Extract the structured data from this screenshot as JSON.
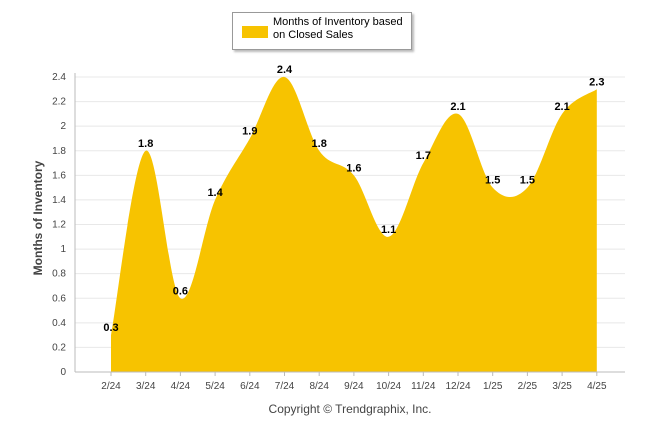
{
  "chart_data": {
    "type": "area",
    "categories": [
      "2/24",
      "3/24",
      "4/24",
      "5/24",
      "6/24",
      "7/24",
      "8/24",
      "9/24",
      "10/24",
      "11/24",
      "12/24",
      "1/25",
      "2/25",
      "3/25",
      "4/25"
    ],
    "series": [
      {
        "name": "Months of Inventory based on Closed Sales",
        "values": [
          0.3,
          1.8,
          0.6,
          1.4,
          1.9,
          2.4,
          1.8,
          1.6,
          1.1,
          1.7,
          2.1,
          1.5,
          1.5,
          2.1,
          2.3
        ],
        "labels": [
          "0.3",
          "1.8",
          "0.6",
          "1.4",
          "1.9",
          "2.4",
          "1.8",
          "1.6",
          "1.1",
          "1.7",
          "2.1",
          "1.5",
          "1.5",
          "2.1",
          "2.3"
        ]
      }
    ],
    "ylabel": "Months of Inventory",
    "ylim": [
      0,
      2.4
    ],
    "yticks": [
      "0",
      "0.2",
      "0.4",
      "0.6",
      "0.8",
      "1",
      "1.2",
      "1.4",
      "1.6",
      "1.8",
      "2",
      "2.2",
      "2.4"
    ],
    "grid": true,
    "legend_position": "top-center",
    "fill_color": "#F7C300",
    "axis_color": "#bbbbbb"
  },
  "footer": "Copyright © Trendgraphix, Inc."
}
